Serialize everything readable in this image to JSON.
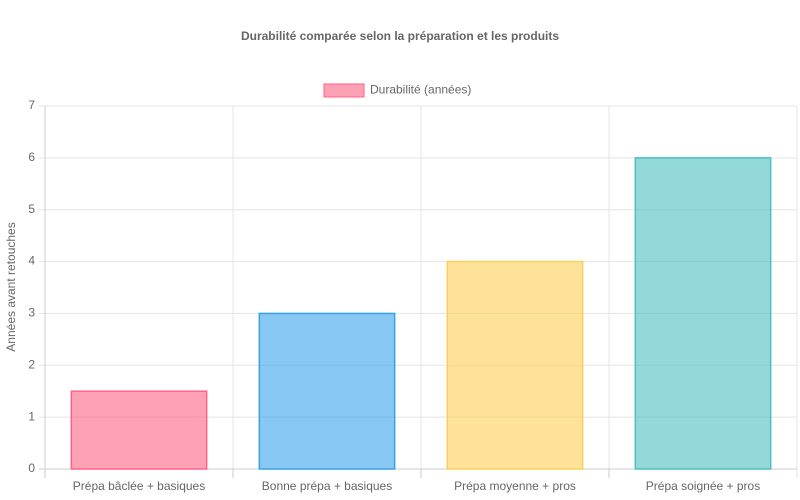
{
  "chart_data": {
    "type": "bar",
    "title": "Durabilité comparée selon la préparation et les produits",
    "categories": [
      "Prépa bâclée + basiques",
      "Bonne prépa + basiques",
      "Prépa moyenne + pros",
      "Prépa soignée + pros"
    ],
    "series": [
      {
        "name": "Durabilité (années)",
        "colors": [
          "#ff6384",
          "#36a2eb",
          "#ffce56",
          "#4bc0c0"
        ],
        "values": [
          1.5,
          3,
          4,
          6
        ]
      }
    ],
    "ylabel": "Années avant retouches",
    "ylim": [
      0,
      7
    ],
    "yticks": [
      0,
      1,
      2,
      3,
      4,
      5,
      6,
      7
    ],
    "grid": true,
    "legend": "top"
  }
}
